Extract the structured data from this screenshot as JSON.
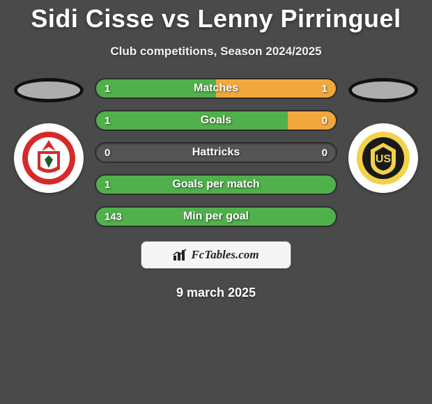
{
  "header": {
    "title": "Sidi Cisse vs Lenny Pirringuel",
    "subtitle": "Club competitions, Season 2024/2025"
  },
  "colors": {
    "left_fill": "#50b04c",
    "right_fill": "#f0a83c",
    "bar_track": "#555555",
    "bar_border": "#2d2d2d",
    "background": "#4a4a4a"
  },
  "bars": [
    {
      "label": "Matches",
      "left_value": "1",
      "right_value": "1",
      "left_pct": 50,
      "right_pct": 50
    },
    {
      "label": "Goals",
      "left_value": "1",
      "right_value": "0",
      "left_pct": 80,
      "right_pct": 20
    },
    {
      "label": "Hattricks",
      "left_value": "0",
      "right_value": "0",
      "left_pct": 0,
      "right_pct": 0
    },
    {
      "label": "Goals per match",
      "left_value": "1",
      "right_value": "",
      "left_pct": 100,
      "right_pct": 0
    },
    {
      "label": "Min per goal",
      "left_value": "143",
      "right_value": "",
      "left_pct": 100,
      "right_pct": 0
    }
  ],
  "brand": {
    "text": "FcTables.com"
  },
  "date": "9 march 2025",
  "crests": {
    "left": {
      "name": "crest-left",
      "outer": "#ffffff",
      "ring": "#d62a2a",
      "inner": "#ffffff",
      "accent": "#1a5c2a",
      "accent2": "#d62a2a"
    },
    "right": {
      "name": "crest-right",
      "outer": "#ffffff",
      "ring": "#f2d24a",
      "inner": "#1a1a1a",
      "accent": "#f2d24a",
      "accent2": "#1a1a1a"
    }
  }
}
